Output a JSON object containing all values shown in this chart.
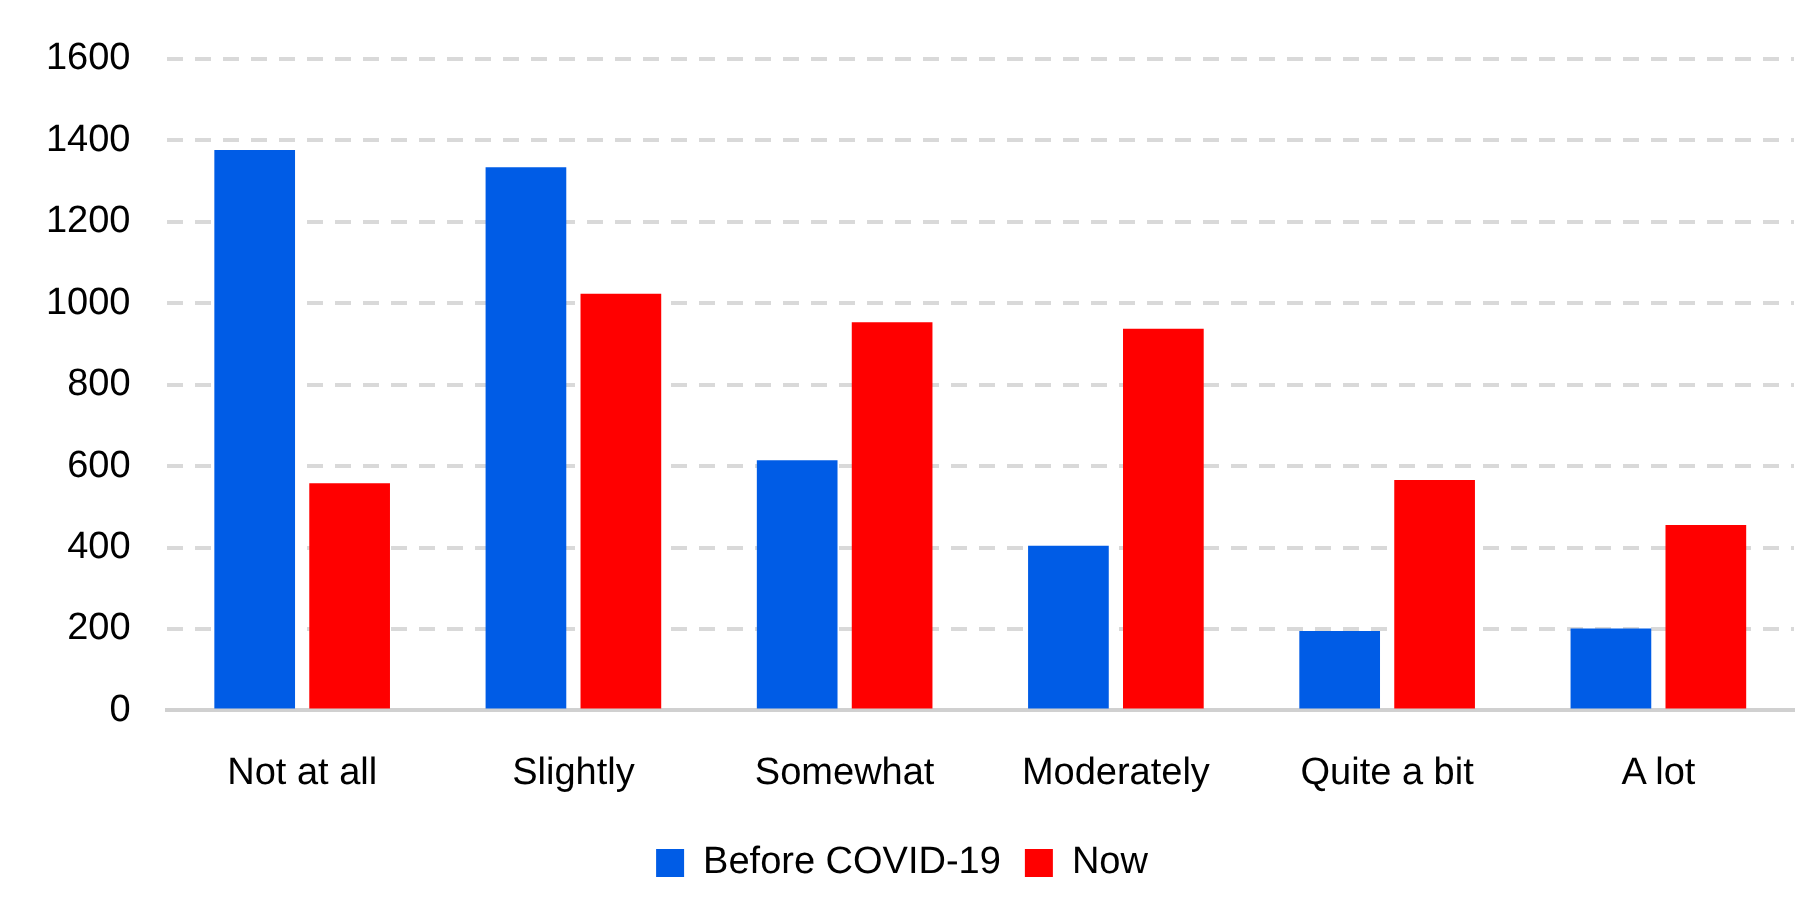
{
  "chart_data": {
    "type": "bar",
    "categories": [
      "Not at all",
      "Slightly",
      "Somewhat",
      "Moderately",
      "Quite a bit",
      "A lot"
    ],
    "series": [
      {
        "name": "Before COVID-19",
        "color": "#005ce6",
        "values": [
          1376,
          1334,
          614,
          404,
          195,
          201
        ]
      },
      {
        "name": "Now",
        "color": "#ff0000",
        "values": [
          558,
          1023,
          953,
          937,
          566,
          455
        ]
      }
    ],
    "ylim": [
      0,
      1600
    ],
    "yticks": [
      0,
      200,
      400,
      600,
      800,
      1000,
      1200,
      1400,
      1600
    ],
    "grid": "y",
    "legend": "bottom"
  }
}
